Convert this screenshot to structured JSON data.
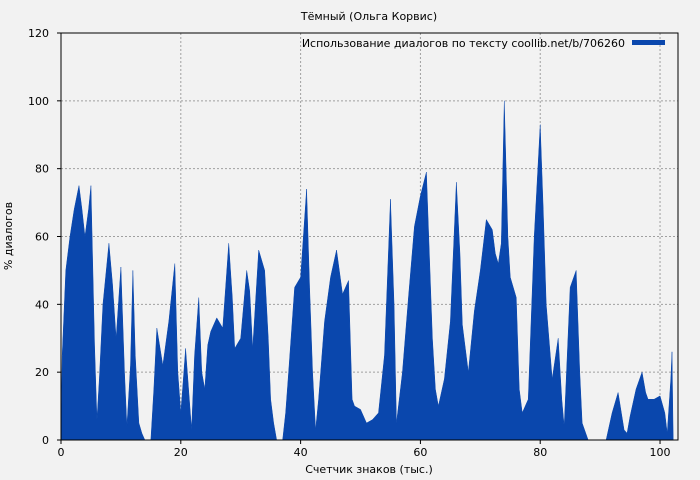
{
  "chart_data": {
    "type": "area",
    "title": "Тёмный (Ольга Корвис)",
    "xlabel": "Счетчик знаков (тыс.)",
    "ylabel": "% диалогов",
    "xlim": [
      0,
      103
    ],
    "ylim": [
      0,
      120
    ],
    "xticks": [
      0,
      20,
      40,
      60,
      80,
      100
    ],
    "yticks": [
      0,
      20,
      40,
      60,
      80,
      100,
      120
    ],
    "grid": true,
    "legend_position": "top-right",
    "colors": {
      "series": "#0a47ad",
      "background": "#f2f2f2",
      "grid": "#a0a0a0"
    },
    "series": [
      {
        "name": "Использование диалогов по тексту coollib.net/b/706260",
        "points": [
          [
            0,
            0
          ],
          [
            0.2,
            25
          ],
          [
            0.8,
            50
          ],
          [
            1.5,
            60
          ],
          [
            2.2,
            68
          ],
          [
            3,
            75
          ],
          [
            3.5,
            68
          ],
          [
            4,
            60
          ],
          [
            4.6,
            68
          ],
          [
            5,
            75
          ],
          [
            5.6,
            28
          ],
          [
            6,
            6
          ],
          [
            6.4,
            18
          ],
          [
            7,
            40
          ],
          [
            8,
            58
          ],
          [
            8.6,
            46
          ],
          [
            9.2,
            30
          ],
          [
            10,
            51
          ],
          [
            10.6,
            20
          ],
          [
            11,
            4
          ],
          [
            11.6,
            22
          ],
          [
            12,
            50
          ],
          [
            12.4,
            25
          ],
          [
            13,
            5
          ],
          [
            13.5,
            2
          ],
          [
            14,
            0
          ],
          [
            15,
            0
          ],
          [
            15.5,
            15
          ],
          [
            16,
            33
          ],
          [
            17,
            22
          ],
          [
            18,
            35
          ],
          [
            19,
            52
          ],
          [
            19.5,
            20
          ],
          [
            20,
            8
          ],
          [
            20.8,
            27
          ],
          [
            21.3,
            15
          ],
          [
            21.8,
            3
          ],
          [
            22.3,
            25
          ],
          [
            23,
            42
          ],
          [
            23.5,
            20
          ],
          [
            24,
            15
          ],
          [
            24.5,
            28
          ],
          [
            25,
            32
          ],
          [
            26,
            36
          ],
          [
            27,
            33
          ],
          [
            28,
            58
          ],
          [
            28.6,
            42
          ],
          [
            29,
            27
          ],
          [
            30,
            30
          ],
          [
            31,
            50
          ],
          [
            31.5,
            44
          ],
          [
            32,
            27
          ],
          [
            33,
            56
          ],
          [
            34,
            50
          ],
          [
            34.6,
            30
          ],
          [
            35,
            12
          ],
          [
            35.5,
            5
          ],
          [
            36,
            0
          ],
          [
            37,
            0
          ],
          [
            37.5,
            8
          ],
          [
            38,
            20
          ],
          [
            39,
            45
          ],
          [
            40,
            48
          ],
          [
            41,
            74
          ],
          [
            41.5,
            45
          ],
          [
            42,
            20
          ],
          [
            42.5,
            3
          ],
          [
            43,
            12
          ],
          [
            44,
            35
          ],
          [
            45,
            48
          ],
          [
            46,
            56
          ],
          [
            47,
            43
          ],
          [
            48,
            47
          ],
          [
            48.6,
            12
          ],
          [
            49,
            10
          ],
          [
            50,
            9
          ],
          [
            51,
            5
          ],
          [
            52,
            6
          ],
          [
            53,
            8
          ],
          [
            54,
            25
          ],
          [
            55,
            71
          ],
          [
            55.6,
            40
          ],
          [
            56,
            5
          ],
          [
            57,
            20
          ],
          [
            58,
            42
          ],
          [
            59,
            63
          ],
          [
            60,
            72
          ],
          [
            61,
            79
          ],
          [
            62,
            30
          ],
          [
            62.5,
            15
          ],
          [
            63,
            10
          ],
          [
            64,
            18
          ],
          [
            65,
            35
          ],
          [
            66,
            76
          ],
          [
            66.6,
            55
          ],
          [
            67,
            34
          ],
          [
            68,
            20
          ],
          [
            69,
            38
          ],
          [
            70,
            50
          ],
          [
            71,
            65
          ],
          [
            72,
            62
          ],
          [
            72.5,
            55
          ],
          [
            73,
            52
          ],
          [
            73.5,
            58
          ],
          [
            74,
            100
          ],
          [
            74.6,
            60
          ],
          [
            75,
            48
          ],
          [
            76,
            42
          ],
          [
            76.5,
            15
          ],
          [
            77,
            8
          ],
          [
            78,
            12
          ],
          [
            79,
            60
          ],
          [
            80,
            93
          ],
          [
            80.5,
            68
          ],
          [
            81,
            40
          ],
          [
            82,
            18
          ],
          [
            83,
            30
          ],
          [
            83.6,
            12
          ],
          [
            84,
            4
          ],
          [
            85,
            45
          ],
          [
            86,
            50
          ],
          [
            86.6,
            20
          ],
          [
            87,
            5
          ],
          [
            88,
            0
          ],
          [
            91,
            0
          ],
          [
            92,
            8
          ],
          [
            93,
            14
          ],
          [
            94,
            3
          ],
          [
            94.5,
            2
          ],
          [
            95,
            7
          ],
          [
            96,
            15
          ],
          [
            97,
            20
          ],
          [
            97.6,
            14
          ],
          [
            98,
            12
          ],
          [
            99,
            12
          ],
          [
            100,
            13
          ],
          [
            100.8,
            8
          ],
          [
            101.2,
            2
          ],
          [
            101.8,
            18
          ],
          [
            102,
            26
          ],
          [
            102.2,
            0
          ]
        ]
      }
    ]
  }
}
